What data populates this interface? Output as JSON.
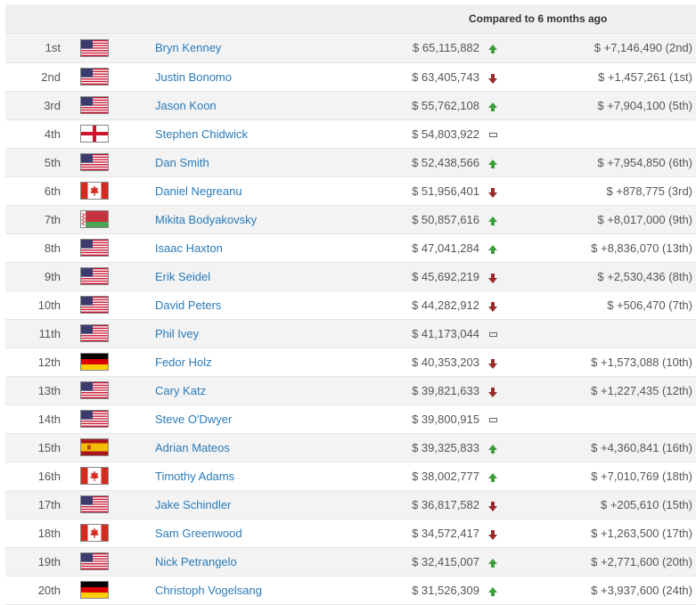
{
  "header": {
    "compared_label": "Compared to 6 months ago"
  },
  "colors": {
    "link": "#2a7ab8",
    "up": "#3ba03b",
    "down": "#9a2a2a"
  },
  "rows": [
    {
      "rank": "1st",
      "flag": "us",
      "name": "Bryn Kenney",
      "earnings": "$ 65,115,882",
      "trend": "up",
      "diff": "$ +7,146,490 (2nd)"
    },
    {
      "rank": "2nd",
      "flag": "us",
      "name": "Justin Bonomo",
      "earnings": "$ 63,405,743",
      "trend": "down",
      "diff": "$ +1,457,261 (1st)"
    },
    {
      "rank": "3rd",
      "flag": "us",
      "name": "Jason Koon",
      "earnings": "$ 55,762,108",
      "trend": "up",
      "diff": "$ +7,904,100 (5th)"
    },
    {
      "rank": "4th",
      "flag": "england",
      "name": "Stephen Chidwick",
      "earnings": "$ 54,803,922",
      "trend": "same",
      "diff": ""
    },
    {
      "rank": "5th",
      "flag": "us",
      "name": "Dan Smith",
      "earnings": "$ 52,438,566",
      "trend": "up",
      "diff": "$ +7,954,850 (6th)"
    },
    {
      "rank": "6th",
      "flag": "ca",
      "name": "Daniel Negreanu",
      "earnings": "$ 51,956,401",
      "trend": "down",
      "diff": "$ +878,775 (3rd)"
    },
    {
      "rank": "7th",
      "flag": "by",
      "name": "Mikita Bodyakovsky",
      "earnings": "$ 50,857,616",
      "trend": "up",
      "diff": "$ +8,017,000 (9th)"
    },
    {
      "rank": "8th",
      "flag": "us",
      "name": "Isaac Haxton",
      "earnings": "$ 47,041,284",
      "trend": "up",
      "diff": "$ +8,836,070 (13th)"
    },
    {
      "rank": "9th",
      "flag": "us",
      "name": "Erik Seidel",
      "earnings": "$ 45,692,219",
      "trend": "down",
      "diff": "$ +2,530,436 (8th)"
    },
    {
      "rank": "10th",
      "flag": "us",
      "name": "David Peters",
      "earnings": "$ 44,282,912",
      "trend": "down",
      "diff": "$ +506,470 (7th)"
    },
    {
      "rank": "11th",
      "flag": "us",
      "name": "Phil Ivey",
      "earnings": "$ 41,173,044",
      "trend": "same",
      "diff": ""
    },
    {
      "rank": "12th",
      "flag": "de",
      "name": "Fedor Holz",
      "earnings": "$ 40,353,203",
      "trend": "down",
      "diff": "$ +1,573,088 (10th)"
    },
    {
      "rank": "13th",
      "flag": "us",
      "name": "Cary Katz",
      "earnings": "$ 39,821,633",
      "trend": "down",
      "diff": "$ +1,227,435 (12th)"
    },
    {
      "rank": "14th",
      "flag": "us",
      "name": "Steve O'Dwyer",
      "earnings": "$ 39,800,915",
      "trend": "same",
      "diff": ""
    },
    {
      "rank": "15th",
      "flag": "es",
      "name": "Adrian Mateos",
      "earnings": "$ 39,325,833",
      "trend": "up",
      "diff": "$ +4,360,841 (16th)"
    },
    {
      "rank": "16th",
      "flag": "ca",
      "name": "Timothy Adams",
      "earnings": "$ 38,002,777",
      "trend": "up",
      "diff": "$ +7,010,769 (18th)"
    },
    {
      "rank": "17th",
      "flag": "us",
      "name": "Jake Schindler",
      "earnings": "$ 36,817,582",
      "trend": "down",
      "diff": "$ +205,610 (15th)"
    },
    {
      "rank": "18th",
      "flag": "ca",
      "name": "Sam Greenwood",
      "earnings": "$ 34,572,417",
      "trend": "down",
      "diff": "$ +1,263,500 (17th)"
    },
    {
      "rank": "19th",
      "flag": "us",
      "name": "Nick Petrangelo",
      "earnings": "$ 32,415,007",
      "trend": "up",
      "diff": "$ +2,771,600 (20th)"
    },
    {
      "rank": "20th",
      "flag": "de",
      "name": "Christoph Vogelsang",
      "earnings": "$ 31,526,309",
      "trend": "up",
      "diff": "$ +3,937,600 (24th)"
    }
  ]
}
